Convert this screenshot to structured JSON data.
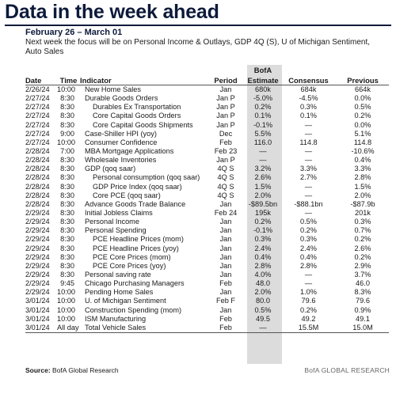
{
  "header": {
    "title": "Data in the week ahead",
    "date_range": "February 26 – March 01",
    "focus": "Next week the focus will be on Personal Income & Outlays, GDP 4Q (S), U of Michigan Sentiment, Auto Sales"
  },
  "columns": {
    "date": "Date",
    "time": "Time",
    "indicator": "Indicator",
    "period": "Period",
    "bofa_top": "BofA",
    "bofa_bottom": "Estimate",
    "consensus": "Consensus",
    "previous": "Previous"
  },
  "rows": [
    {
      "date": "2/26/24",
      "time": "10:00",
      "indicator": "New Home Sales",
      "sub": false,
      "period": "Jan",
      "bofa": "680k",
      "consensus": "684k",
      "previous": "664k"
    },
    {
      "date": "2/27/24",
      "time": "8:30",
      "indicator": "Durable Goods Orders",
      "sub": false,
      "period": "Jan P",
      "bofa": "-5.0%",
      "consensus": "-4.5%",
      "previous": "0.0%"
    },
    {
      "date": "2/27/24",
      "time": "8:30",
      "indicator": "Durables Ex Transportation",
      "sub": true,
      "period": "Jan P",
      "bofa": "0.2%",
      "consensus": "0.3%",
      "previous": "0.5%"
    },
    {
      "date": "2/27/24",
      "time": "8:30",
      "indicator": "Core Capital Goods Orders",
      "sub": true,
      "period": "Jan P",
      "bofa": "0.1%",
      "consensus": "0.1%",
      "previous": "0.2%"
    },
    {
      "date": "2/27/24",
      "time": "8:30",
      "indicator": "Core Capital Goods Shipments",
      "sub": true,
      "period": "Jan P",
      "bofa": "-0.1%",
      "consensus": "—",
      "previous": "0.0%"
    },
    {
      "date": "2/27/24",
      "time": "9:00",
      "indicator": "Case-Shiller HPI (yoy)",
      "sub": false,
      "period": "Dec",
      "bofa": "5.5%",
      "consensus": "—",
      "previous": "5.1%"
    },
    {
      "date": "2/27/24",
      "time": "10:00",
      "indicator": "Consumer Confidence",
      "sub": false,
      "period": "Feb",
      "bofa": "116.0",
      "consensus": "114.8",
      "previous": "114.8"
    },
    {
      "date": "2/28/24",
      "time": "7:00",
      "indicator": "MBA Mortgage Applications",
      "sub": false,
      "period": "Feb 23",
      "bofa": "—",
      "consensus": "—",
      "previous": "-10.6%"
    },
    {
      "date": "2/28/24",
      "time": "8:30",
      "indicator": "Wholesale Inventories",
      "sub": false,
      "period": "Jan P",
      "bofa": "—",
      "consensus": "—",
      "previous": "0.4%"
    },
    {
      "date": "2/28/24",
      "time": "8:30",
      "indicator": "GDP (qoq saar)",
      "sub": false,
      "period": "4Q S",
      "bofa": "3.2%",
      "consensus": "3.3%",
      "previous": "3.3%"
    },
    {
      "date": "2/28/24",
      "time": "8:30",
      "indicator": "Personal consumption (qoq saar)",
      "sub": true,
      "period": "4Q S",
      "bofa": "2.6%",
      "consensus": "2.7%",
      "previous": "2.8%"
    },
    {
      "date": "2/28/24",
      "time": "8:30",
      "indicator": "GDP Price Index (qoq saar)",
      "sub": true,
      "period": "4Q S",
      "bofa": "1.5%",
      "consensus": "—",
      "previous": "1.5%"
    },
    {
      "date": "2/28/24",
      "time": "8:30",
      "indicator": "Core PCE (qoq saar)",
      "sub": true,
      "period": "4Q S",
      "bofa": "2.0%",
      "consensus": "—",
      "previous": "2.0%"
    },
    {
      "date": "2/28/24",
      "time": "8:30",
      "indicator": "Advance Goods Trade Balance",
      "sub": false,
      "period": "Jan",
      "bofa": "-$89.5bn",
      "consensus": "-$88.1bn",
      "previous": "-$87.9b"
    },
    {
      "date": "2/29/24",
      "time": "8:30",
      "indicator": "Initial Jobless Claims",
      "sub": false,
      "period": "Feb 24",
      "bofa": "195k",
      "consensus": "—",
      "previous": "201k"
    },
    {
      "date": "2/29/24",
      "time": "8:30",
      "indicator": "Personal Income",
      "sub": false,
      "period": "Jan",
      "bofa": "0.2%",
      "consensus": "0.5%",
      "previous": "0.3%"
    },
    {
      "date": "2/29/24",
      "time": "8:30",
      "indicator": "Personal Spending",
      "sub": false,
      "period": "Jan",
      "bofa": "-0.1%",
      "consensus": "0.2%",
      "previous": "0.7%"
    },
    {
      "date": "2/29/24",
      "time": "8:30",
      "indicator": "PCE Headline Prices (mom)",
      "sub": true,
      "period": "Jan",
      "bofa": "0.3%",
      "consensus": "0.3%",
      "previous": "0.2%"
    },
    {
      "date": "2/29/24",
      "time": "8:30",
      "indicator": "PCE Headline Prices (yoy)",
      "sub": true,
      "period": "Jan",
      "bofa": "2.4%",
      "consensus": "2.4%",
      "previous": "2.6%"
    },
    {
      "date": "2/29/24",
      "time": "8:30",
      "indicator": "PCE Core Prices (mom)",
      "sub": true,
      "period": "Jan",
      "bofa": "0.4%",
      "consensus": "0.4%",
      "previous": "0.2%"
    },
    {
      "date": "2/29/24",
      "time": "8:30",
      "indicator": "PCE Core Prices (yoy)",
      "sub": true,
      "period": "Jan",
      "bofa": "2.8%",
      "consensus": "2.8%",
      "previous": "2.9%"
    },
    {
      "date": "2/29/24",
      "time": "8:30",
      "indicator": "Personal saving rate",
      "sub": false,
      "period": "Jan",
      "bofa": "4.0%",
      "consensus": "—",
      "previous": "3.7%"
    },
    {
      "date": "2/29/24",
      "time": "9:45",
      "indicator": "Chicago Purchasing Managers",
      "sub": false,
      "period": "Feb",
      "bofa": "48.0",
      "consensus": "—",
      "previous": "46.0"
    },
    {
      "date": "2/29/24",
      "time": "10:00",
      "indicator": "Pending Home Sales",
      "sub": false,
      "period": "Jan",
      "bofa": "2.0%",
      "consensus": "1.0%",
      "previous": "8.3%"
    },
    {
      "date": "3/01/24",
      "time": "10:00",
      "indicator": "U. of Michigan Sentiment",
      "sub": false,
      "period": "Feb F",
      "bofa": "80.0",
      "consensus": "79.6",
      "previous": "79.6"
    },
    {
      "date": "3/01/24",
      "time": "10:00",
      "indicator": "Construction Spending (mom)",
      "sub": false,
      "period": "Jan",
      "bofa": "0.5%",
      "consensus": "0.2%",
      "previous": "0.9%"
    },
    {
      "date": "3/01/24",
      "time": "10:00",
      "indicator": "ISM Manufacturing",
      "sub": false,
      "period": "Feb",
      "bofa": "49.5",
      "consensus": "49.2",
      "previous": "49.1"
    },
    {
      "date": "3/01/24",
      "time": "All day",
      "indicator": "Total Vehicle Sales",
      "sub": false,
      "period": "Feb",
      "bofa": "—",
      "consensus": "15.5M",
      "previous": "15.0M"
    }
  ],
  "footer": {
    "source_label": "Source:",
    "source_text": "BofA Global Research",
    "brand": "BofA GLOBAL RESEARCH"
  },
  "colors": {
    "title": "#0d1a3a",
    "estimate_band": "#dcdcdc"
  }
}
